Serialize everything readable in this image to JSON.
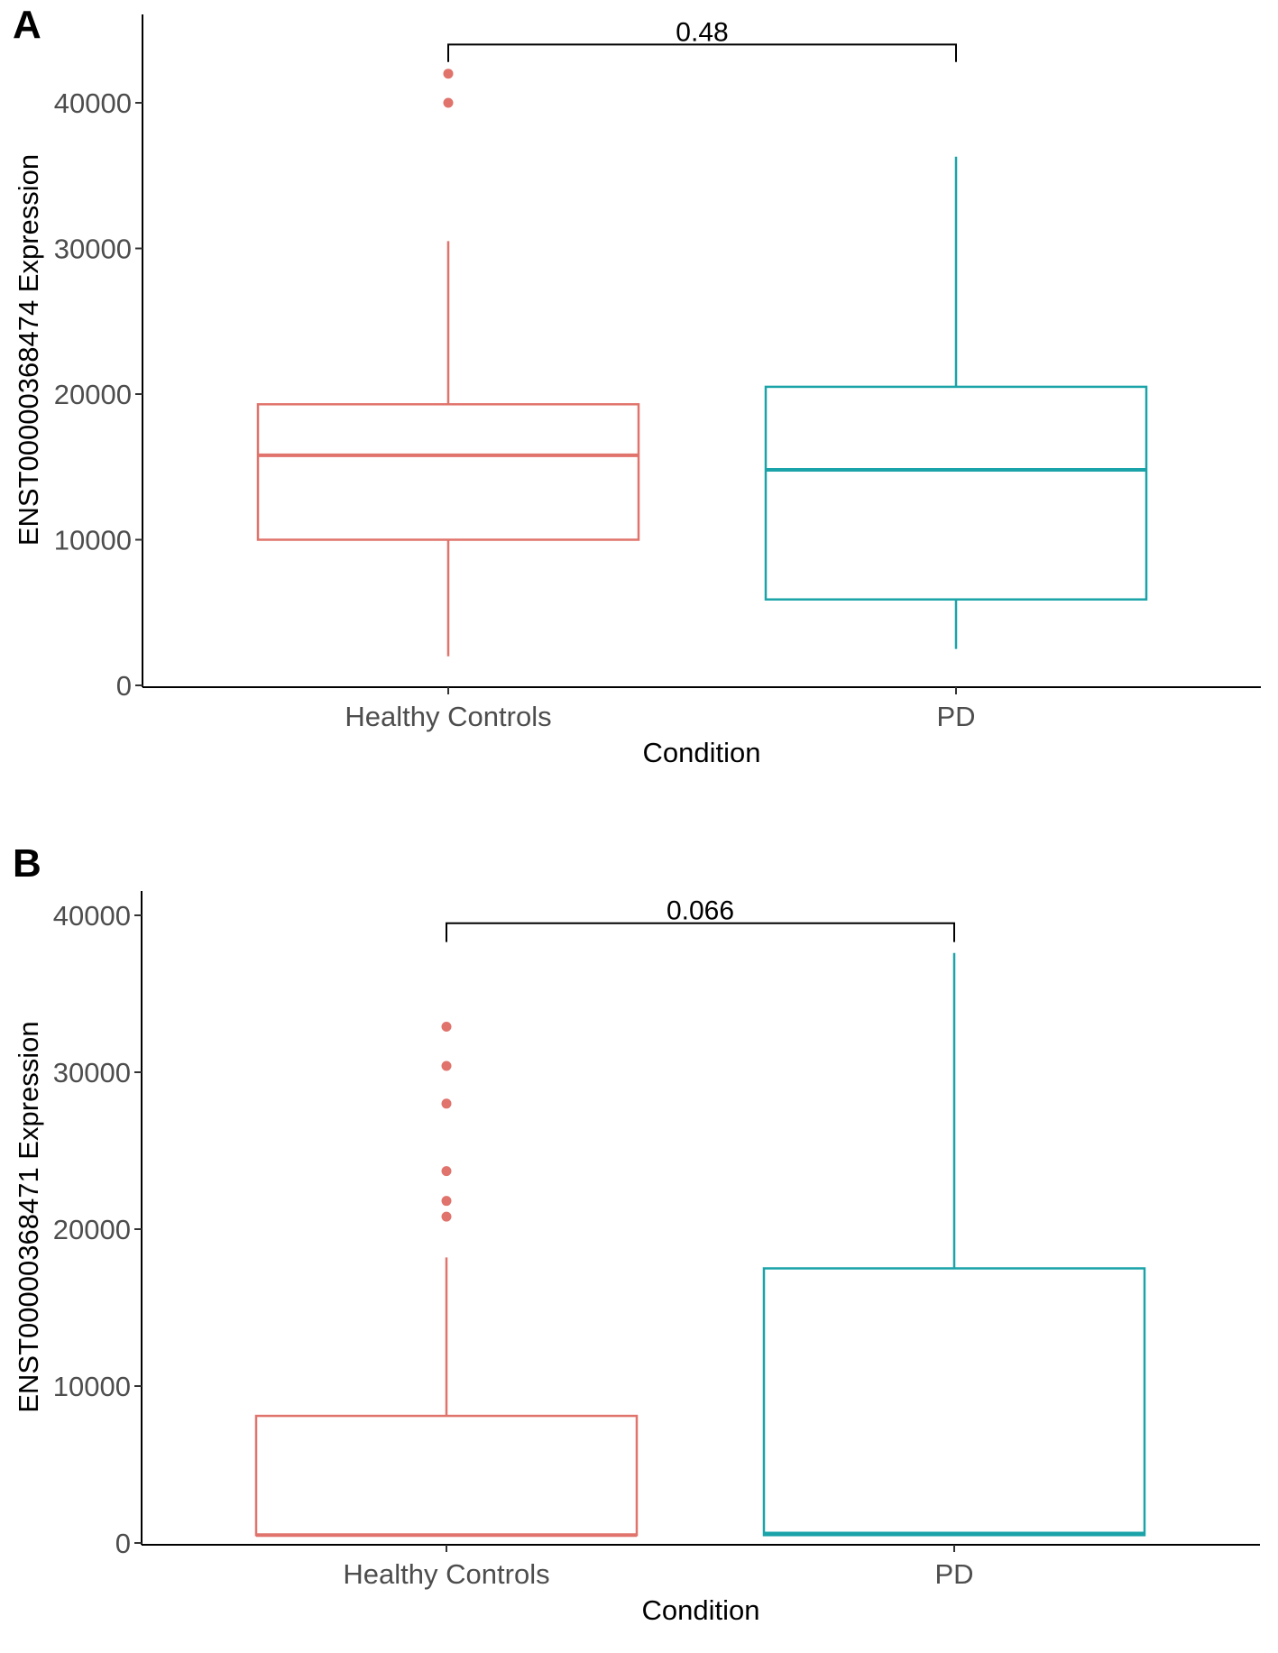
{
  "chart_data": [
    {
      "type": "boxplot",
      "panel_label": "A",
      "xlabel": "Condition",
      "ylabel": "ENST00000368474 Expression",
      "ylim": [
        0,
        46000
      ],
      "yticks": [
        0,
        10000,
        20000,
        30000,
        40000
      ],
      "grid": false,
      "categories": [
        "Healthy Controls",
        "PD"
      ],
      "boxes": [
        {
          "category": "Healthy Controls",
          "color": "#e0736b",
          "whisker_low": 2000,
          "q1": 10000,
          "median": 15800,
          "q3": 19300,
          "whisker_high": 30500,
          "outliers": [
            40000,
            42000
          ]
        },
        {
          "category": "PD",
          "color": "#1aa3a8",
          "whisker_low": 2500,
          "q1": 5900,
          "median": 14800,
          "q3": 20500,
          "whisker_high": 36300,
          "outliers": []
        }
      ],
      "comparison": {
        "label": "0.48",
        "y": 44000,
        "drop": 1200
      }
    },
    {
      "type": "boxplot",
      "panel_label": "B",
      "xlabel": "Condition",
      "ylabel": "ENST00000368471 Expression",
      "ylim": [
        0,
        41500
      ],
      "yticks": [
        0,
        10000,
        20000,
        30000,
        40000
      ],
      "grid": false,
      "categories": [
        "Healthy Controls",
        "PD"
      ],
      "boxes": [
        {
          "category": "Healthy Controls",
          "color": "#e0736b",
          "whisker_low": 500,
          "q1": 500,
          "median": 500,
          "q3": 8100,
          "whisker_high": 18200,
          "outliers": [
            20800,
            21800,
            23700,
            28000,
            30400,
            32900
          ]
        },
        {
          "category": "PD",
          "color": "#1aa3a8",
          "whisker_low": 500,
          "q1": 500,
          "median": 600,
          "q3": 17500,
          "whisker_high": 37600,
          "outliers": []
        }
      ],
      "comparison": {
        "label": "0.066",
        "y": 39500,
        "drop": 1200
      }
    }
  ]
}
